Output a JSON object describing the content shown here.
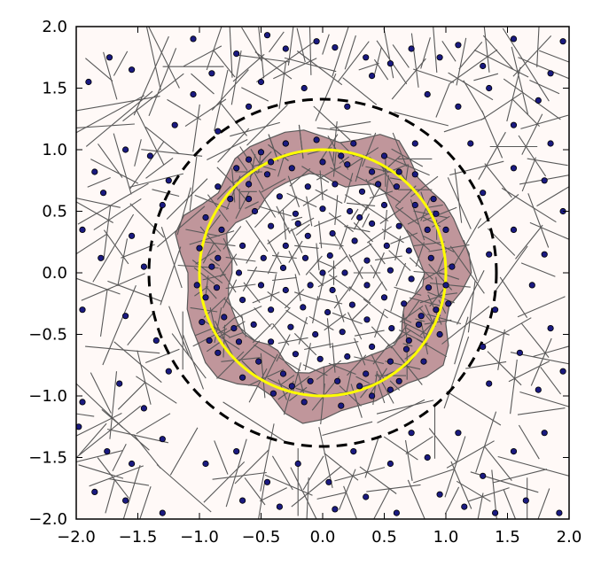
{
  "chart_data": {
    "type": "scatter",
    "title": "",
    "xlabel": "",
    "ylabel": "",
    "xlim": [
      -2.0,
      2.0
    ],
    "ylim": [
      -2.0,
      2.0
    ],
    "grid": false,
    "x_tick_labels": [
      "−2.0",
      "−1.5",
      "−1.0",
      "−0.5",
      "0.0",
      "0.5",
      "1.0",
      "1.5",
      "2.0"
    ],
    "y_tick_labels": [
      "2.0",
      "1.5",
      "1.0",
      "0.5",
      "0.0",
      "−0.5",
      "−1.0",
      "−1.5",
      "−2.0"
    ],
    "x_tick_values": [
      -2.0,
      -1.5,
      -1.0,
      -0.5,
      0.0,
      0.5,
      1.0,
      1.5,
      2.0
    ],
    "y_tick_values": [
      2.0,
      1.5,
      1.0,
      0.5,
      0.0,
      -0.5,
      -1.0,
      -1.5,
      -2.0
    ],
    "background_color": "#fff9f7",
    "highlight_color": "#c0969b",
    "cell_edge_color": "#595959",
    "point_color": "#1a1a80",
    "unit_circle": {
      "center": [
        0,
        0
      ],
      "radius": 1.0,
      "color": "#ffff00"
    },
    "dashed_circle": {
      "center": [
        0,
        0
      ],
      "radius": 1.41,
      "color": "#000000"
    },
    "highlight_band": {
      "inner_radius": 0.78,
      "outer_radius": 1.15
    },
    "outer_points": [
      [
        -1.73,
        1.75
      ],
      [
        -1.55,
        1.65
      ],
      [
        -1.05,
        1.9
      ],
      [
        -0.9,
        1.62
      ],
      [
        -0.7,
        1.78
      ],
      [
        -0.45,
        1.93
      ],
      [
        -0.3,
        1.82
      ],
      [
        -0.05,
        1.88
      ],
      [
        0.1,
        1.83
      ],
      [
        0.35,
        1.75
      ],
      [
        0.55,
        1.7
      ],
      [
        0.72,
        1.82
      ],
      [
        0.95,
        1.75
      ],
      [
        1.1,
        1.85
      ],
      [
        1.3,
        1.68
      ],
      [
        1.55,
        1.9
      ],
      [
        1.85,
        1.62
      ],
      [
        1.95,
        1.88
      ],
      [
        -1.9,
        1.55
      ],
      [
        -1.05,
        1.45
      ],
      [
        0.4,
        1.6
      ],
      [
        0.85,
        1.45
      ],
      [
        1.35,
        1.5
      ],
      [
        1.75,
        1.4
      ],
      [
        -1.2,
        1.2
      ],
      [
        -0.85,
        1.15
      ],
      [
        -0.6,
        1.35
      ],
      [
        -0.3,
        1.05
      ],
      [
        0.75,
        1.05
      ],
      [
        1.1,
        1.35
      ],
      [
        1.2,
        1.05
      ],
      [
        1.55,
        1.2
      ],
      [
        1.85,
        1.05
      ],
      [
        -1.85,
        0.82
      ],
      [
        -1.6,
        1.0
      ],
      [
        -1.4,
        0.95
      ],
      [
        -1.25,
        0.75
      ],
      [
        -1.3,
        0.55
      ],
      [
        -1.78,
        0.65
      ],
      [
        1.3,
        0.65
      ],
      [
        1.55,
        0.85
      ],
      [
        1.8,
        0.75
      ],
      [
        1.95,
        0.5
      ],
      [
        -1.95,
        0.35
      ],
      [
        -1.55,
        0.3
      ],
      [
        -1.45,
        0.05
      ],
      [
        -1.8,
        0.12
      ],
      [
        1.55,
        0.35
      ],
      [
        1.35,
        0.15
      ],
      [
        1.8,
        0.15
      ],
      [
        -1.95,
        -0.3
      ],
      [
        -1.6,
        -0.35
      ],
      [
        -1.35,
        -0.55
      ],
      [
        -1.25,
        -0.8
      ],
      [
        1.4,
        -0.3
      ],
      [
        1.7,
        -0.1
      ],
      [
        1.85,
        -0.45
      ],
      [
        1.3,
        -0.6
      ],
      [
        1.6,
        -0.65
      ],
      [
        -1.95,
        -1.05
      ],
      [
        -1.65,
        -0.9
      ],
      [
        -1.45,
        -1.1
      ],
      [
        1.35,
        -0.9
      ],
      [
        1.75,
        -0.95
      ],
      [
        1.95,
        -0.8
      ],
      [
        -1.75,
        -1.45
      ],
      [
        -1.55,
        -1.55
      ],
      [
        -1.3,
        -1.35
      ],
      [
        -0.95,
        -1.55
      ],
      [
        -0.7,
        -1.45
      ],
      [
        -0.45,
        -1.7
      ],
      [
        -0.2,
        -1.55
      ],
      [
        0.05,
        -1.7
      ],
      [
        0.25,
        -1.45
      ],
      [
        0.55,
        -1.55
      ],
      [
        0.85,
        -1.5
      ],
      [
        1.1,
        -1.3
      ],
      [
        1.3,
        -1.65
      ],
      [
        1.55,
        -1.45
      ],
      [
        1.8,
        -1.3
      ],
      [
        -1.85,
        -1.78
      ],
      [
        -1.6,
        -1.85
      ],
      [
        -1.3,
        -1.95
      ],
      [
        -0.65,
        -1.85
      ],
      [
        -0.35,
        -1.9
      ],
      [
        0.1,
        -1.92
      ],
      [
        0.35,
        -1.82
      ],
      [
        0.6,
        -1.95
      ],
      [
        0.95,
        -1.8
      ],
      [
        1.15,
        -1.9
      ],
      [
        1.4,
        -1.95
      ],
      [
        1.65,
        -1.85
      ],
      [
        1.92,
        -1.95
      ],
      [
        -1.98,
        -1.25
      ],
      [
        0.72,
        -1.3
      ],
      [
        -0.15,
        1.5
      ],
      [
        0.2,
        1.35
      ],
      [
        -0.5,
        1.55
      ]
    ],
    "band_points": [
      [
        -0.95,
        0.45
      ],
      [
        -0.85,
        0.7
      ],
      [
        -0.7,
        0.85
      ],
      [
        -0.5,
        0.98
      ],
      [
        -0.3,
        1.05
      ],
      [
        -0.05,
        1.08
      ],
      [
        0.25,
        1.05
      ],
      [
        0.5,
        0.95
      ],
      [
        0.75,
        0.8
      ],
      [
        0.9,
        0.6
      ],
      [
        1.0,
        0.35
      ],
      [
        1.05,
        0.05
      ],
      [
        1.02,
        -0.25
      ],
      [
        0.95,
        -0.5
      ],
      [
        0.82,
        -0.72
      ],
      [
        0.62,
        -0.88
      ],
      [
        0.4,
        -1.0
      ],
      [
        0.15,
        -1.08
      ],
      [
        -0.15,
        -1.05
      ],
      [
        -0.4,
        -0.98
      ],
      [
        -0.65,
        -0.85
      ],
      [
        -0.85,
        -0.65
      ],
      [
        -0.98,
        -0.4
      ],
      [
        -1.02,
        -0.1
      ],
      [
        -1.0,
        0.2
      ],
      [
        -0.92,
        -0.55
      ],
      [
        0.92,
        0.48
      ],
      [
        -0.6,
        0.92
      ],
      [
        0.55,
        -0.95
      ],
      [
        1.0,
        -0.1
      ]
    ],
    "inner_points": [
      [
        -0.75,
        0.6
      ],
      [
        -0.6,
        0.72
      ],
      [
        -0.45,
        0.8
      ],
      [
        -0.25,
        0.85
      ],
      [
        0.0,
        0.9
      ],
      [
        0.2,
        0.88
      ],
      [
        0.4,
        0.82
      ],
      [
        0.6,
        0.7
      ],
      [
        0.75,
        0.55
      ],
      [
        0.85,
        0.35
      ],
      [
        0.88,
        0.12
      ],
      [
        0.86,
        -0.12
      ],
      [
        0.8,
        -0.35
      ],
      [
        0.7,
        -0.55
      ],
      [
        0.55,
        -0.72
      ],
      [
        0.35,
        -0.82
      ],
      [
        0.12,
        -0.88
      ],
      [
        -0.1,
        -0.88
      ],
      [
        -0.32,
        -0.82
      ],
      [
        -0.52,
        -0.72
      ],
      [
        -0.68,
        -0.56
      ],
      [
        -0.8,
        -0.36
      ],
      [
        -0.86,
        -0.12
      ],
      [
        -0.85,
        0.12
      ],
      [
        -0.82,
        0.35
      ],
      [
        -0.55,
        0.5
      ],
      [
        -0.35,
        0.62
      ],
      [
        -0.12,
        0.7
      ],
      [
        0.1,
        0.72
      ],
      [
        0.32,
        0.66
      ],
      [
        0.5,
        0.55
      ],
      [
        0.62,
        0.38
      ],
      [
        0.7,
        0.18
      ],
      [
        0.72,
        -0.05
      ],
      [
        0.66,
        -0.25
      ],
      [
        0.56,
        -0.45
      ],
      [
        0.4,
        -0.6
      ],
      [
        0.2,
        -0.68
      ],
      [
        -0.02,
        -0.7
      ],
      [
        -0.22,
        -0.66
      ],
      [
        -0.42,
        -0.56
      ],
      [
        -0.56,
        -0.42
      ],
      [
        -0.65,
        -0.22
      ],
      [
        -0.68,
        0.0
      ],
      [
        -0.65,
        0.22
      ],
      [
        -0.42,
        0.38
      ],
      [
        -0.22,
        0.48
      ],
      [
        0.0,
        0.52
      ],
      [
        0.22,
        0.5
      ],
      [
        0.4,
        0.4
      ],
      [
        0.52,
        0.22
      ],
      [
        0.55,
        0.02
      ],
      [
        0.5,
        -0.2
      ],
      [
        0.36,
        -0.38
      ],
      [
        0.16,
        -0.48
      ],
      [
        -0.06,
        -0.5
      ],
      [
        -0.26,
        -0.44
      ],
      [
        -0.42,
        -0.3
      ],
      [
        -0.5,
        -0.1
      ],
      [
        -0.48,
        0.12
      ],
      [
        -0.3,
        0.22
      ],
      [
        -0.12,
        0.3
      ],
      [
        0.08,
        0.32
      ],
      [
        0.26,
        0.26
      ],
      [
        0.36,
        0.1
      ],
      [
        0.36,
        -0.1
      ],
      [
        0.24,
        -0.26
      ],
      [
        0.04,
        -0.32
      ],
      [
        -0.16,
        -0.28
      ],
      [
        -0.3,
        -0.14
      ],
      [
        -0.32,
        0.04
      ],
      [
        -0.14,
        0.12
      ],
      [
        0.06,
        0.14
      ],
      [
        0.18,
        0.0
      ],
      [
        0.08,
        -0.14
      ],
      [
        -0.1,
        -0.1
      ],
      [
        0.0,
        0.0
      ],
      [
        -0.6,
        0.6
      ],
      [
        0.68,
        -0.62
      ],
      [
        -0.72,
        -0.45
      ],
      [
        0.45,
        0.72
      ],
      [
        0.15,
        0.95
      ],
      [
        -0.9,
        0.05
      ],
      [
        0.92,
        -0.3
      ],
      [
        -0.25,
        -0.92
      ],
      [
        0.3,
        -0.92
      ],
      [
        -0.95,
        -0.2
      ],
      [
        0.62,
        0.82
      ],
      [
        -0.42,
        0.9
      ],
      [
        0.78,
        -0.42
      ],
      [
        -0.2,
        0.4
      ],
      [
        0.3,
        0.45
      ]
    ]
  }
}
